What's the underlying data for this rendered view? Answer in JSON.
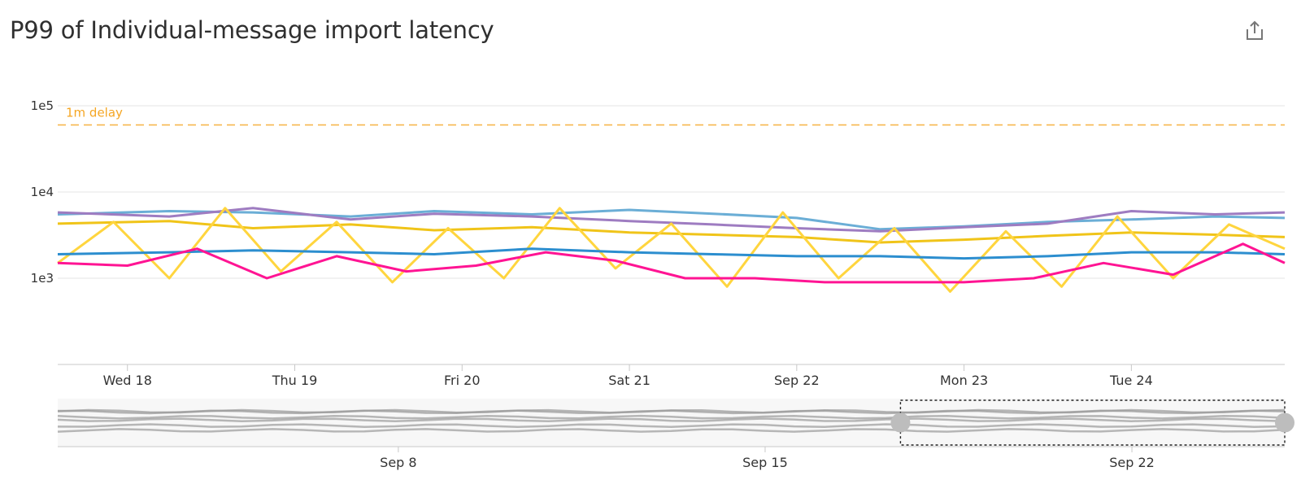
{
  "title": "P99 of Individual-message import latency",
  "share_icon": "share-icon",
  "chart_data": {
    "type": "line",
    "title": "P99 of Individual-message import latency",
    "xlabel": "",
    "ylabel": "",
    "yscale": "log",
    "ylim": [
      100,
      100000
    ],
    "y_ticks": [
      {
        "value": 100000,
        "label": "1e5"
      },
      {
        "value": 10000,
        "label": "1e4"
      },
      {
        "value": 1000,
        "label": "1e3"
      }
    ],
    "x_range": [
      "2024-09-17T14:00",
      "2024-09-24T22:00"
    ],
    "x_ticks": [
      {
        "date": "2024-09-18",
        "label": "Wed 18"
      },
      {
        "date": "2024-09-19",
        "label": "Thu 19"
      },
      {
        "date": "2024-09-20",
        "label": "Fri 20"
      },
      {
        "date": "2024-09-21",
        "label": "Sat 21"
      },
      {
        "date": "2024-09-22",
        "label": "Sep 22"
      },
      {
        "date": "2024-09-23",
        "label": "Mon 23"
      },
      {
        "date": "2024-09-24",
        "label": "Tue 24"
      }
    ],
    "grid": true,
    "threshold": {
      "label": "1m delay",
      "value": 60000,
      "color": "#f5a623"
    },
    "series_colors": [
      "#6baed6",
      "#9e7cc1",
      "#f0c419",
      "#ffd53e",
      "#2c8ecf",
      "#ff1493"
    ],
    "series": [
      {
        "color": "#6baed6",
        "x": [
          "2024-09-17T14:00",
          "2024-09-18T06:00",
          "2024-09-18T18:00",
          "2024-09-19T08:00",
          "2024-09-19T20:00",
          "2024-09-20T10:00",
          "2024-09-21T00:00",
          "2024-09-21T12:00",
          "2024-09-22T00:00",
          "2024-09-22T12:00",
          "2024-09-23T00:00",
          "2024-09-23T12:00",
          "2024-09-24T00:00",
          "2024-09-24T12:00",
          "2024-09-24T22:00"
        ],
        "values": [
          5500,
          6000,
          5800,
          5200,
          6000,
          5500,
          6200,
          5600,
          5000,
          3700,
          4000,
          4500,
          4800,
          5200,
          5000
        ]
      },
      {
        "color": "#9e7cc1",
        "x": [
          "2024-09-17T14:00",
          "2024-09-18T06:00",
          "2024-09-18T18:00",
          "2024-09-19T08:00",
          "2024-09-19T20:00",
          "2024-09-20T10:00",
          "2024-09-21T00:00",
          "2024-09-21T12:00",
          "2024-09-22T00:00",
          "2024-09-22T12:00",
          "2024-09-23T00:00",
          "2024-09-23T12:00",
          "2024-09-24T00:00",
          "2024-09-24T12:00",
          "2024-09-24T22:00"
        ],
        "values": [
          5800,
          5200,
          6500,
          4800,
          5600,
          5200,
          4600,
          4200,
          3800,
          3500,
          3900,
          4300,
          6000,
          5500,
          5800
        ]
      },
      {
        "color": "#f0c419",
        "x": [
          "2024-09-17T14:00",
          "2024-09-18T06:00",
          "2024-09-18T18:00",
          "2024-09-19T08:00",
          "2024-09-19T20:00",
          "2024-09-20T10:00",
          "2024-09-21T00:00",
          "2024-09-21T12:00",
          "2024-09-22T00:00",
          "2024-09-22T12:00",
          "2024-09-23T00:00",
          "2024-09-23T12:00",
          "2024-09-24T00:00",
          "2024-09-24T12:00",
          "2024-09-24T22:00"
        ],
        "values": [
          4300,
          4600,
          3800,
          4200,
          3600,
          3900,
          3400,
          3200,
          3000,
          2600,
          2800,
          3100,
          3400,
          3200,
          3000
        ]
      },
      {
        "color": "#ffd53e",
        "x": [
          "2024-09-17T14:00",
          "2024-09-17T22:00",
          "2024-09-18T06:00",
          "2024-09-18T14:00",
          "2024-09-18T22:00",
          "2024-09-19T06:00",
          "2024-09-19T14:00",
          "2024-09-19T22:00",
          "2024-09-20T06:00",
          "2024-09-20T14:00",
          "2024-09-20T22:00",
          "2024-09-21T06:00",
          "2024-09-21T14:00",
          "2024-09-21T22:00",
          "2024-09-22T06:00",
          "2024-09-22T14:00",
          "2024-09-22T22:00",
          "2024-09-23T06:00",
          "2024-09-23T14:00",
          "2024-09-23T22:00",
          "2024-09-24T06:00",
          "2024-09-24T14:00",
          "2024-09-24T22:00"
        ],
        "values": [
          1500,
          4500,
          1000,
          6500,
          1200,
          4500,
          900,
          3800,
          1000,
          6500,
          1300,
          4300,
          800,
          5800,
          1000,
          3800,
          700,
          3500,
          800,
          5200,
          1000,
          4200,
          2200
        ]
      },
      {
        "color": "#2c8ecf",
        "x": [
          "2024-09-17T14:00",
          "2024-09-18T06:00",
          "2024-09-18T18:00",
          "2024-09-19T08:00",
          "2024-09-19T20:00",
          "2024-09-20T10:00",
          "2024-09-21T00:00",
          "2024-09-21T12:00",
          "2024-09-22T00:00",
          "2024-09-22T12:00",
          "2024-09-23T00:00",
          "2024-09-23T12:00",
          "2024-09-24T00:00",
          "2024-09-24T12:00",
          "2024-09-24T22:00"
        ],
        "values": [
          1900,
          2000,
          2100,
          2000,
          1900,
          2200,
          2000,
          1900,
          1800,
          1800,
          1700,
          1800,
          2000,
          2000,
          1900
        ]
      },
      {
        "color": "#ff1493",
        "x": [
          "2024-09-17T14:00",
          "2024-09-18T00:00",
          "2024-09-18T10:00",
          "2024-09-18T20:00",
          "2024-09-19T06:00",
          "2024-09-19T16:00",
          "2024-09-20T02:00",
          "2024-09-20T12:00",
          "2024-09-20T22:00",
          "2024-09-21T08:00",
          "2024-09-21T18:00",
          "2024-09-22T04:00",
          "2024-09-22T14:00",
          "2024-09-23T00:00",
          "2024-09-23T10:00",
          "2024-09-23T20:00",
          "2024-09-24T06:00",
          "2024-09-24T16:00",
          "2024-09-24T22:00"
        ],
        "values": [
          1500,
          1400,
          2200,
          1000,
          1800,
          1200,
          1400,
          2000,
          1600,
          1000,
          1000,
          900,
          900,
          900,
          1000,
          1500,
          1100,
          2500,
          1500
        ]
      }
    ],
    "navigator": {
      "x_ticks": [
        {
          "date": "2024-09-08",
          "label": "Sep 8"
        },
        {
          "date": "2024-09-15",
          "label": "Sep 15"
        },
        {
          "date": "2024-09-22",
          "label": "Sep 22"
        }
      ],
      "selected_range": [
        "2024-09-17T14:00",
        "2024-09-24T22:00"
      ]
    }
  }
}
